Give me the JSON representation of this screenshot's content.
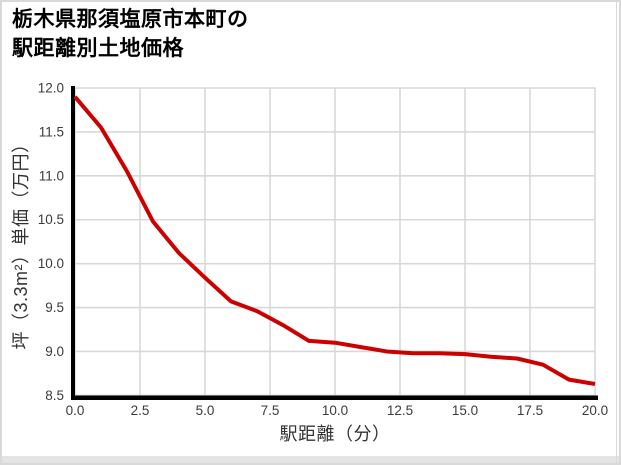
{
  "frame": {
    "border_color": "#d9d9d9",
    "bottom_strip_color": "#e4e4e4"
  },
  "title": {
    "lines": [
      "栃木県那須塩原市本町の",
      "駅距離別土地価格"
    ]
  },
  "chart_data": {
    "type": "line",
    "title": "栃木県那須塩原市本町の駅距離別土地価格",
    "xlabel": "駅距離（分）",
    "ylabel": "坪（3.3m²）単価（万円）",
    "xlim": [
      0,
      20
    ],
    "ylim": [
      8.5,
      12.0
    ],
    "grid": true,
    "legend": "none",
    "x_tick_values": [
      0,
      2.5,
      5,
      7.5,
      10,
      12.5,
      15,
      17.5,
      20
    ],
    "x_tick_labels": [
      "0.0",
      "2.5",
      "5.0",
      "7.5",
      "10.0",
      "12.5",
      "15.0",
      "17.5",
      "20.0"
    ],
    "y_tick_values": [
      8.5,
      9.0,
      9.5,
      10.0,
      10.5,
      11.0,
      11.5,
      12.0
    ],
    "y_tick_labels": [
      "8.5",
      "9.0",
      "9.5",
      "10.0",
      "10.5",
      "11.0",
      "11.5",
      "12.0"
    ],
    "series": [
      {
        "x": [
          0,
          1,
          2,
          3,
          4,
          5,
          6,
          7,
          8,
          9,
          10,
          11,
          12,
          13,
          14,
          15,
          16,
          17,
          18,
          19,
          20
        ],
        "y": [
          11.9,
          11.55,
          11.05,
          10.48,
          10.12,
          9.84,
          9.57,
          9.46,
          9.3,
          9.12,
          9.1,
          9.05,
          9.0,
          8.98,
          8.98,
          8.97,
          8.94,
          8.92,
          8.85,
          8.68,
          8.63
        ],
        "color": "#cc0000",
        "line_width": 4
      }
    ],
    "colors": {
      "grid": "#d8d8d8",
      "axis": "#000000",
      "tick_text": "#3b3b3b"
    }
  }
}
